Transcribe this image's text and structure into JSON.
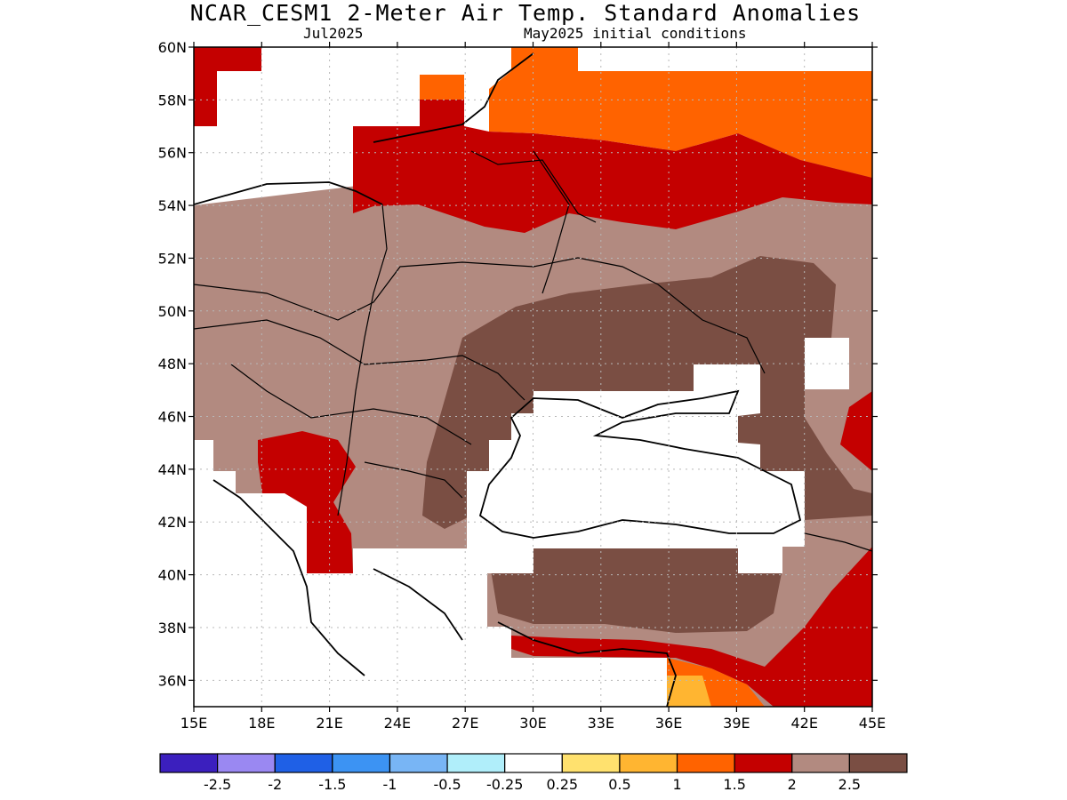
{
  "title": "NCAR_CESM1 2-Meter Air Temp. Standard Anomalies",
  "subtitle_left": "Jul2025",
  "subtitle_right": "May2025 initial conditions",
  "map": {
    "lon_range": [
      15,
      45
    ],
    "lat_range": [
      35,
      60
    ],
    "lat_labels": [
      "60N",
      "58N",
      "56N",
      "54N",
      "52N",
      "50N",
      "48N",
      "46N",
      "44N",
      "42N",
      "40N",
      "38N",
      "36N"
    ],
    "lon_labels": [
      "15E",
      "18E",
      "21E",
      "24E",
      "27E",
      "30E",
      "33E",
      "36E",
      "39E",
      "42E",
      "45E"
    ],
    "gridlines": true
  },
  "legend": {
    "colors": [
      "#3b1fbe",
      "#9a88f2",
      "#1f60e6",
      "#3c93f3",
      "#78b5f5",
      "#b0eefa",
      "#ffffff",
      "#ffe16e",
      "#ffb531",
      "#ff6300",
      "#c40000",
      "#b28a80",
      "#7a4e43"
    ],
    "labels": [
      "-2.5",
      "-2",
      "-1.5",
      "-1",
      "-0.5",
      "-0.25",
      "0.25",
      "0.5",
      "1",
      "1.5",
      "2",
      "2.5"
    ]
  }
}
